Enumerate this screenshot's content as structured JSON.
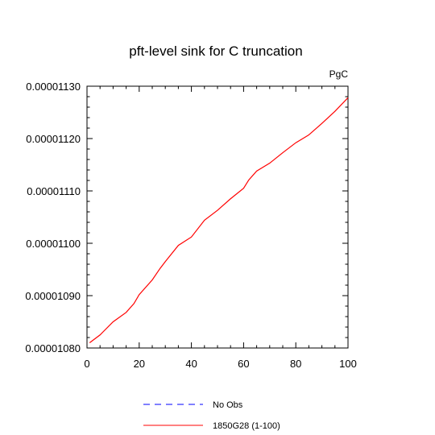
{
  "chart_data": {
    "type": "line",
    "title": "pft-level sink for C truncation",
    "units": "PgC",
    "ylabel": "",
    "xlabel": "",
    "xlim": [
      0,
      100
    ],
    "ylim": [
      1.08e-05,
      1.13e-05
    ],
    "xticks": [
      0,
      20,
      40,
      60,
      80,
      100
    ],
    "yticks": [
      1.08e-05,
      1.09e-05,
      1.1e-05,
      1.11e-05,
      1.12e-05,
      1.13e-05
    ],
    "xtick_labels": [
      "0",
      "20",
      "40",
      "60",
      "80",
      "100"
    ],
    "ytick_labels": [
      "0.00001080",
      "0.00001090",
      "0.00001100",
      "0.00001110",
      "0.00001120",
      "0.00001130"
    ],
    "grid": false,
    "legend_position": "bottom",
    "series": [
      {
        "name": "No Obs",
        "color": "#0000ff",
        "dash": "dashed",
        "x": [],
        "y": []
      },
      {
        "name": "1850G28 (1-100)",
        "color": "#ff0000",
        "dash": "solid",
        "x": [
          1,
          5,
          10,
          15,
          18,
          20,
          25,
          28,
          30,
          35,
          40,
          45,
          50,
          55,
          60,
          62,
          65,
          70,
          75,
          80,
          85,
          90,
          95,
          100
        ],
        "y": [
          1.081e-05,
          1.0825e-05,
          1.085e-05,
          1.0868e-05,
          1.0885e-05,
          1.0902e-05,
          1.093e-05,
          1.0952e-05,
          1.0965e-05,
          1.0996e-05,
          1.1012e-05,
          1.1044e-05,
          1.1063e-05,
          1.1085e-05,
          1.1105e-05,
          1.1121e-05,
          1.1138e-05,
          1.1153e-05,
          1.1173e-05,
          1.1192e-05,
          1.1207e-05,
          1.1229e-05,
          1.1252e-05,
          1.1278e-05
        ]
      }
    ]
  }
}
